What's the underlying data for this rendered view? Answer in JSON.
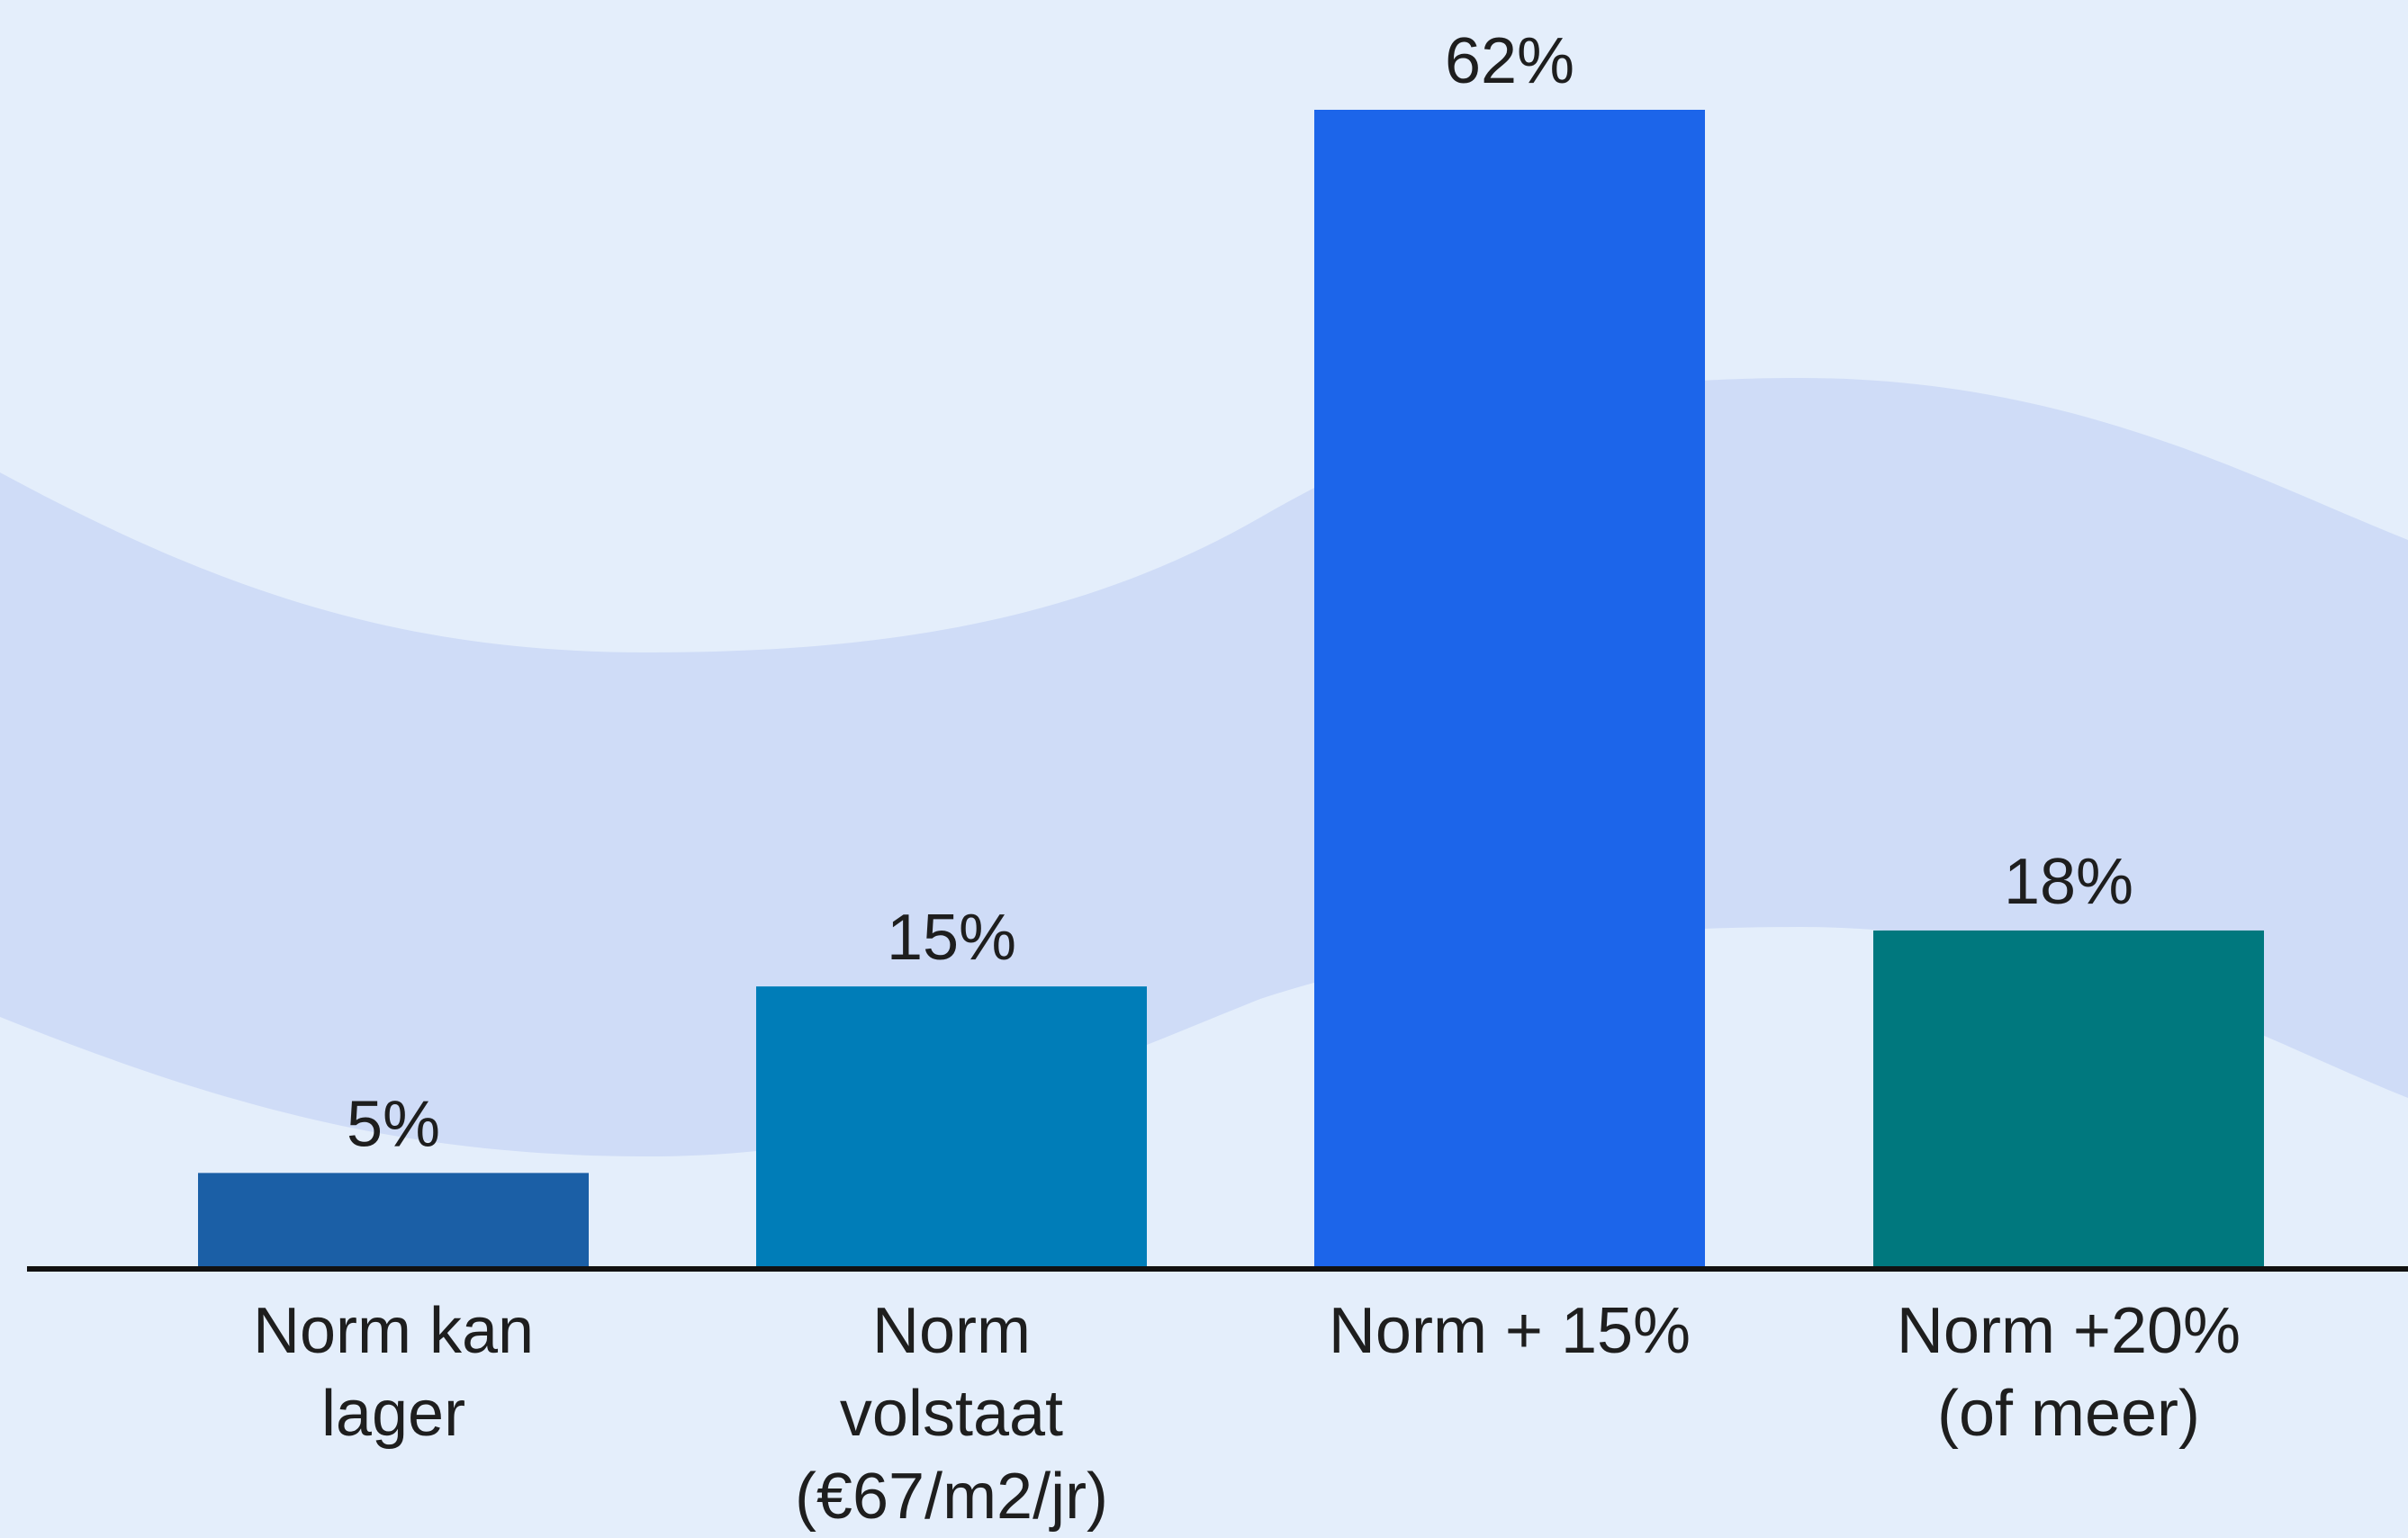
{
  "chart_data": {
    "type": "bar",
    "categories": [
      [
        "Norm kan",
        "lager"
      ],
      [
        "Norm",
        "volstaat",
        "(€67/m2/jr)"
      ],
      [
        "Norm + 15%"
      ],
      [
        "Norm +20%",
        "(of meer)"
      ]
    ],
    "values": [
      5,
      15,
      62,
      18
    ],
    "value_labels": [
      "5%",
      "15%",
      "62%",
      "18%"
    ],
    "unit": "%",
    "bar_colors": [
      "#1b5fa6",
      "#007db8",
      "#1c65ea",
      "#00787e"
    ],
    "ylim": [
      0,
      62
    ],
    "title": "",
    "xlabel": "",
    "ylabel": "",
    "grid": false,
    "legend": "none"
  },
  "colors": {
    "background": "#e4eefb",
    "wave_band": "#cfdcf7",
    "axis": "#111111",
    "text": "#1e1e1e"
  }
}
